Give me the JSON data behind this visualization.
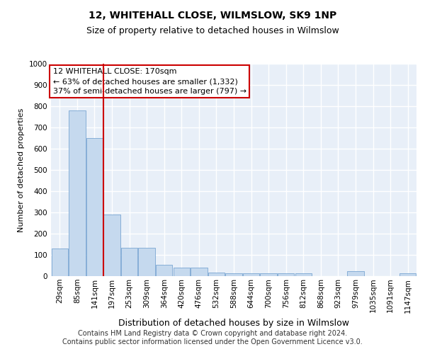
{
  "title": "12, WHITEHALL CLOSE, WILMSLOW, SK9 1NP",
  "subtitle": "Size of property relative to detached houses in Wilmslow",
  "xlabel": "Distribution of detached houses by size in Wilmslow",
  "ylabel": "Number of detached properties",
  "bar_color": "#c5d9ee",
  "bar_edge_color": "#6699cc",
  "background_color": "#e8eff8",
  "grid_color": "#ffffff",
  "vline_color": "#cc0000",
  "vline_x": 2.5,
  "annotation_box_color": "#cc0000",
  "annotation_text": "12 WHITEHALL CLOSE: 170sqm\n← 63% of detached houses are smaller (1,332)\n37% of semi-detached houses are larger (797) →",
  "categories": [
    "29sqm",
    "85sqm",
    "141sqm",
    "197sqm",
    "253sqm",
    "309sqm",
    "364sqm",
    "420sqm",
    "476sqm",
    "532sqm",
    "588sqm",
    "644sqm",
    "700sqm",
    "756sqm",
    "812sqm",
    "868sqm",
    "923sqm",
    "979sqm",
    "1035sqm",
    "1091sqm",
    "1147sqm"
  ],
  "values": [
    130,
    780,
    650,
    290,
    135,
    135,
    55,
    40,
    40,
    18,
    15,
    15,
    15,
    12,
    12,
    0,
    0,
    22,
    0,
    0,
    12
  ],
  "ylim": [
    0,
    1000
  ],
  "yticks": [
    0,
    100,
    200,
    300,
    400,
    500,
    600,
    700,
    800,
    900,
    1000
  ],
  "footer": "Contains HM Land Registry data © Crown copyright and database right 2024.\nContains public sector information licensed under the Open Government Licence v3.0.",
  "footer_fontsize": 7,
  "title_fontsize": 10,
  "subtitle_fontsize": 9,
  "ylabel_fontsize": 8,
  "xlabel_fontsize": 9,
  "tick_fontsize": 7.5,
  "annot_fontsize": 8
}
